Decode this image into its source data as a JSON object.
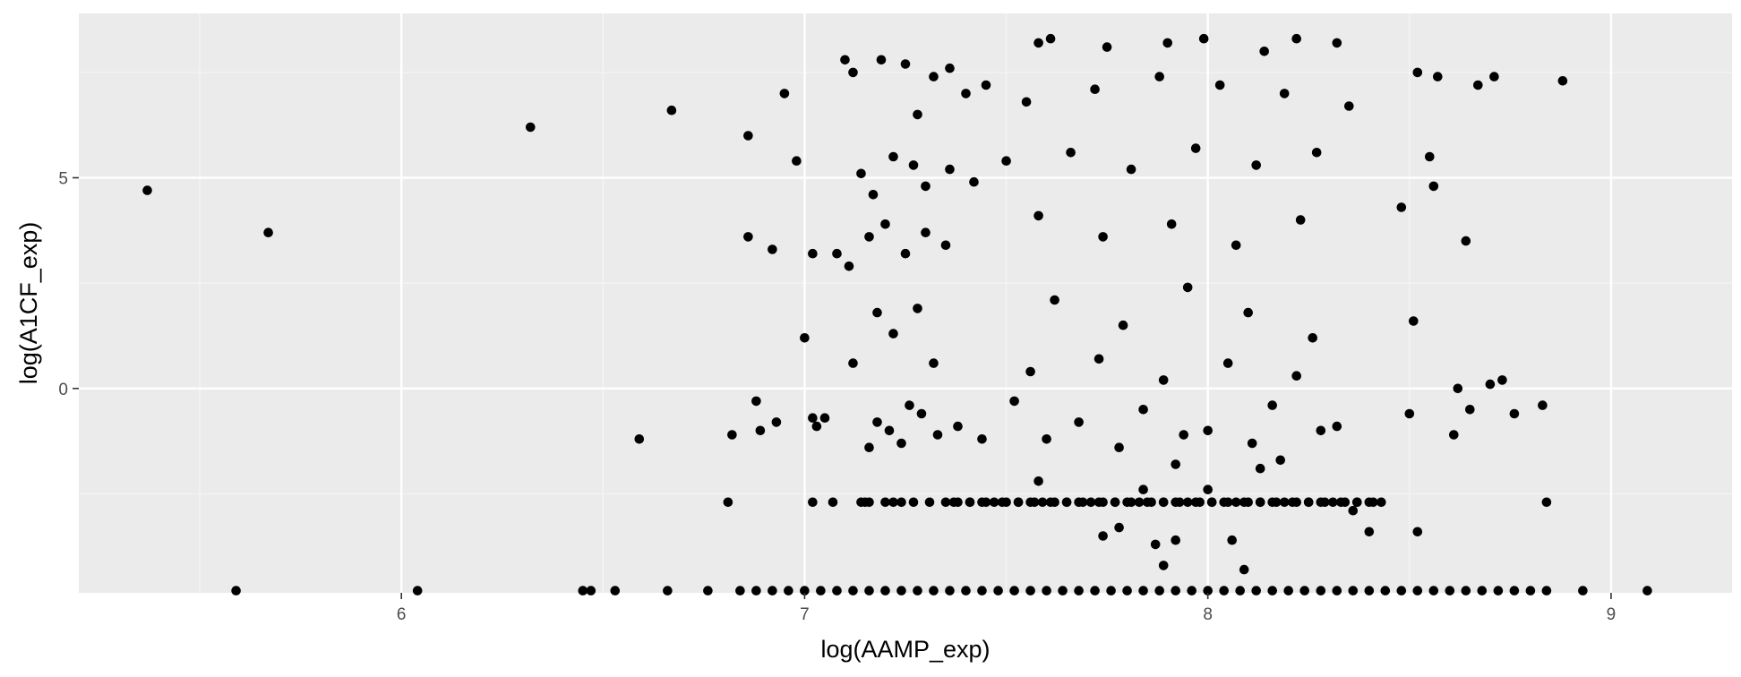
{
  "chart_data": {
    "type": "scatter",
    "title": "",
    "xlabel": "log(AAMP_exp)",
    "ylabel": "log(A1CF_exp)",
    "xlim": [
      5.2,
      9.3
    ],
    "ylim": [
      -4.85,
      8.9
    ],
    "x_ticks": [
      6,
      7,
      8,
      9
    ],
    "x_tick_labels": [
      "6",
      "7",
      "8",
      "9"
    ],
    "y_ticks": [
      0,
      5
    ],
    "y_tick_labels": [
      "0",
      "5"
    ],
    "grid": true,
    "legend": "none",
    "colors": {
      "panel_background": "#ebebeb",
      "grid_major": "#ffffff",
      "grid_minor": "#f5f5f5",
      "point": "#000000",
      "tick": "#333333"
    },
    "points": [
      [
        5.37,
        4.7
      ],
      [
        5.67,
        3.7
      ],
      [
        6.32,
        6.2
      ],
      [
        6.67,
        6.6
      ],
      [
        6.86,
        6.0
      ],
      [
        6.95,
        7.0
      ],
      [
        6.98,
        5.4
      ],
      [
        6.86,
        3.6
      ],
      [
        6.92,
        3.3
      ],
      [
        7.02,
        3.2
      ],
      [
        7.08,
        3.2
      ],
      [
        7.11,
        2.9
      ],
      [
        7.0,
        1.2
      ],
      [
        7.12,
        0.6
      ],
      [
        6.59,
        -1.2
      ],
      [
        6.82,
        -1.1
      ],
      [
        6.88,
        -0.3
      ],
      [
        6.93,
        -0.8
      ],
      [
        6.89,
        -1.0
      ],
      [
        7.03,
        -0.9
      ],
      [
        7.05,
        -0.7
      ],
      [
        7.02,
        -0.7
      ],
      [
        6.81,
        -2.7
      ],
      [
        7.1,
        7.8
      ],
      [
        7.12,
        7.5
      ],
      [
        7.19,
        7.8
      ],
      [
        7.25,
        7.7
      ],
      [
        7.28,
        6.5
      ],
      [
        7.32,
        7.4
      ],
      [
        7.36,
        7.6
      ],
      [
        7.4,
        7.0
      ],
      [
        7.45,
        7.2
      ],
      [
        7.14,
        5.1
      ],
      [
        7.17,
        4.6
      ],
      [
        7.22,
        5.5
      ],
      [
        7.27,
        5.3
      ],
      [
        7.3,
        4.8
      ],
      [
        7.36,
        5.2
      ],
      [
        7.42,
        4.9
      ],
      [
        7.16,
        3.6
      ],
      [
        7.2,
        3.9
      ],
      [
        7.25,
        3.2
      ],
      [
        7.3,
        3.7
      ],
      [
        7.35,
        3.4
      ],
      [
        7.18,
        1.8
      ],
      [
        7.22,
        1.3
      ],
      [
        7.28,
        1.9
      ],
      [
        7.32,
        0.6
      ],
      [
        7.18,
        -0.8
      ],
      [
        7.21,
        -1.0
      ],
      [
        7.24,
        -1.3
      ],
      [
        7.26,
        -0.4
      ],
      [
        7.29,
        -0.6
      ],
      [
        7.33,
        -1.1
      ],
      [
        7.16,
        -1.4
      ],
      [
        7.38,
        -0.9
      ],
      [
        7.44,
        -1.2
      ],
      [
        7.84,
        -2.4
      ],
      [
        7.74,
        -3.5
      ],
      [
        7.78,
        -3.3
      ],
      [
        7.87,
        -3.7
      ],
      [
        7.89,
        -4.2
      ],
      [
        7.92,
        -3.6
      ],
      [
        8.0,
        -2.4
      ],
      [
        8.06,
        -3.6
      ],
      [
        8.09,
        -4.3
      ],
      [
        7.58,
        -2.2
      ],
      [
        7.92,
        -1.8
      ],
      [
        8.13,
        -1.9
      ],
      [
        8.18,
        -1.7
      ],
      [
        8.36,
        -2.9
      ],
      [
        8.4,
        -3.4
      ],
      [
        8.52,
        -3.4
      ],
      [
        8.5,
        -0.6
      ],
      [
        8.51,
        1.6
      ],
      [
        8.48,
        4.3
      ],
      [
        8.56,
        4.8
      ],
      [
        8.55,
        5.5
      ],
      [
        8.52,
        7.5
      ],
      [
        8.57,
        7.4
      ],
      [
        8.64,
        3.5
      ],
      [
        8.61,
        -1.1
      ],
      [
        8.62,
        0.0
      ],
      [
        8.65,
        -0.5
      ],
      [
        8.7,
        0.1
      ],
      [
        8.73,
        0.2
      ],
      [
        8.76,
        -0.6
      ],
      [
        8.83,
        -0.4
      ],
      [
        8.84,
        -2.7
      ],
      [
        8.67,
        7.2
      ],
      [
        8.71,
        7.4
      ],
      [
        8.88,
        7.3
      ],
      [
        7.61,
        8.3
      ],
      [
        7.58,
        8.2
      ],
      [
        7.9,
        8.2
      ],
      [
        7.99,
        8.3
      ],
      [
        8.22,
        8.3
      ],
      [
        8.32,
        8.2
      ],
      [
        7.75,
        8.1
      ],
      [
        8.14,
        8.0
      ],
      [
        7.5,
        5.4
      ],
      [
        7.66,
        5.6
      ],
      [
        7.81,
        5.2
      ],
      [
        7.97,
        5.7
      ],
      [
        8.12,
        5.3
      ],
      [
        8.27,
        5.6
      ],
      [
        7.55,
        6.8
      ],
      [
        7.72,
        7.1
      ],
      [
        7.88,
        7.4
      ],
      [
        8.03,
        7.2
      ],
      [
        8.19,
        7.0
      ],
      [
        8.35,
        6.7
      ],
      [
        7.58,
        4.1
      ],
      [
        7.74,
        3.6
      ],
      [
        7.91,
        3.9
      ],
      [
        8.07,
        3.4
      ],
      [
        8.23,
        4.0
      ],
      [
        7.62,
        2.1
      ],
      [
        7.79,
        1.5
      ],
      [
        7.95,
        2.4
      ],
      [
        8.1,
        1.8
      ],
      [
        8.26,
        1.2
      ],
      [
        7.52,
        -0.3
      ],
      [
        7.68,
        -0.8
      ],
      [
        7.84,
        -0.5
      ],
      [
        8.0,
        -1.0
      ],
      [
        8.16,
        -0.4
      ],
      [
        8.32,
        -0.9
      ],
      [
        7.6,
        -1.2
      ],
      [
        7.78,
        -1.4
      ],
      [
        7.94,
        -1.1
      ],
      [
        8.11,
        -1.3
      ],
      [
        8.28,
        -1.0
      ],
      [
        7.56,
        0.4
      ],
      [
        7.73,
        0.7
      ],
      [
        7.89,
        0.2
      ],
      [
        8.05,
        0.6
      ],
      [
        8.22,
        0.3
      ]
    ],
    "band_points": [
      [
        7.14,
        7.15,
        7.2,
        7.24,
        7.31,
        7.35,
        7.38,
        7.41,
        7.44,
        7.47,
        7.5,
        7.53,
        7.56,
        7.59,
        7.62,
        7.65,
        7.68,
        7.71,
        7.74,
        7.77,
        7.8,
        7.83,
        7.86,
        7.89,
        7.92,
        7.95,
        7.98,
        8.01,
        8.04,
        8.07,
        8.1,
        8.13,
        8.16,
        8.19,
        8.22,
        8.25,
        8.28,
        8.31,
        8.34,
        8.37,
        8.4,
        8.43
      ],
      [
        7.02,
        7.07,
        7.16,
        7.22,
        7.27,
        7.37,
        7.41,
        7.45,
        7.49,
        7.53,
        7.57,
        7.61,
        7.65,
        7.69,
        7.73,
        7.77,
        7.81,
        7.85,
        7.89,
        7.93,
        7.97,
        8.01,
        8.05,
        8.09,
        8.13,
        8.17,
        8.21,
        8.25,
        8.29,
        8.33,
        8.37,
        8.41
      ]
    ],
    "band_y": [
      -2.7,
      -2.7
    ],
    "floor_points": [
      5.59,
      6.04,
      6.45,
      6.47,
      6.53,
      6.66,
      6.76,
      6.84,
      6.88,
      6.92,
      6.96,
      7.0,
      7.04,
      7.08,
      7.12,
      7.16,
      7.2,
      7.24,
      7.28,
      7.32,
      7.36,
      7.4,
      7.44,
      7.48,
      7.52,
      7.56,
      7.6,
      7.64,
      7.68,
      7.72,
      7.76,
      7.8,
      7.84,
      7.88,
      7.92,
      7.96,
      8.0,
      8.04,
      8.08,
      8.12,
      8.16,
      8.2,
      8.24,
      8.28,
      8.32,
      8.36,
      8.4,
      8.44,
      8.48,
      8.52,
      8.56,
      8.6,
      8.64,
      8.68,
      8.72,
      8.76,
      8.8,
      8.84,
      8.93,
      9.09
    ],
    "floor_y": -4.8
  }
}
